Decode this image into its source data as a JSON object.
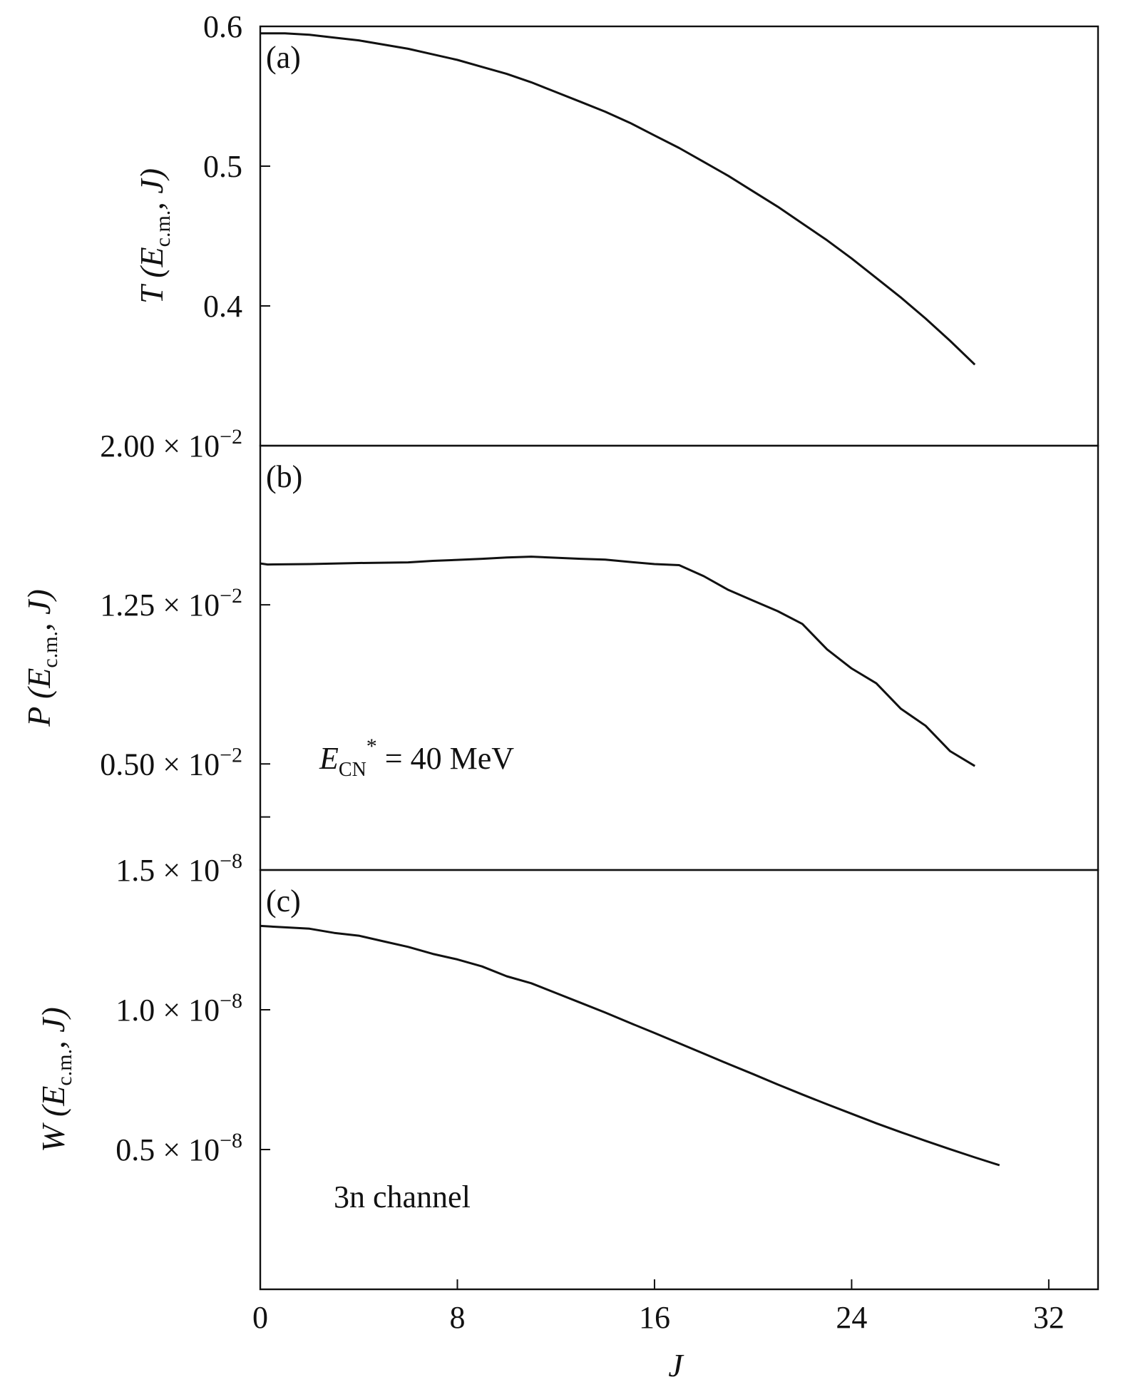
{
  "chart_data": [
    {
      "type": "line",
      "panel_tag": "(a)",
      "ylabel": {
        "main": "T (E",
        "sub": "c.m.",
        "tail": ", J)"
      },
      "ylim": [
        0.3,
        0.6
      ],
      "yticks": [
        {
          "value": 0.6,
          "label": "0.6"
        },
        {
          "value": 0.5,
          "label": "0.5"
        },
        {
          "value": 0.4,
          "label": "0.4"
        }
      ],
      "x": [
        0,
        1,
        2,
        3,
        4,
        5,
        6,
        7,
        8,
        9,
        10,
        11,
        12,
        13,
        14,
        15,
        16,
        17,
        18,
        19,
        20,
        21,
        22,
        23,
        24,
        25,
        26,
        27,
        28,
        29
      ],
      "values": [
        0.595,
        0.595,
        0.594,
        0.592,
        0.59,
        0.587,
        0.584,
        0.58,
        0.576,
        0.571,
        0.566,
        0.56,
        0.553,
        0.546,
        0.539,
        0.531,
        0.522,
        0.513,
        0.503,
        0.493,
        0.482,
        0.471,
        0.459,
        0.447,
        0.434,
        0.42,
        0.406,
        0.391,
        0.375,
        0.358
      ]
    },
    {
      "type": "line",
      "panel_tag": "(b)",
      "ylabel": {
        "main": "P (E",
        "sub": "c.m.",
        "tail": ", J)"
      },
      "ylim": [
        0.0,
        0.02
      ],
      "yticks": [
        {
          "value": 0.02,
          "label": "2.00 × 10",
          "exp": "−2"
        },
        {
          "value": 0.0125,
          "label": "1.25 × 10",
          "exp": "−2"
        },
        {
          "value": 0.005,
          "label": "0.50 × 10",
          "exp": "−2"
        }
      ],
      "extra_tick": 0.0025,
      "annotation": {
        "main": "E",
        "sub": "CN",
        "sup": "*",
        "tail": " = 40 MeV"
      },
      "x": [
        0,
        0.3,
        2,
        4,
        6,
        7,
        8,
        9,
        10,
        11,
        12,
        13,
        14,
        15,
        16,
        17,
        18,
        19,
        20,
        21,
        22,
        23,
        24,
        25,
        26,
        27,
        28,
        29
      ],
      "values": [
        0.01445,
        0.0144,
        0.01442,
        0.01447,
        0.0145,
        0.01457,
        0.01462,
        0.01467,
        0.01473,
        0.01477,
        0.01472,
        0.01467,
        0.01463,
        0.01452,
        0.01442,
        0.01437,
        0.01385,
        0.0132,
        0.0127,
        0.0122,
        0.0116,
        0.0104,
        0.0095,
        0.0088,
        0.0076,
        0.0068,
        0.0056,
        0.0049
      ]
    },
    {
      "type": "line",
      "panel_tag": "(c)",
      "ylabel": {
        "main": "W (E",
        "sub": "c.m.",
        "tail": ", J)"
      },
      "ylim": [
        0.0,
        1.5e-08
      ],
      "yticks": [
        {
          "value": 1.5e-08,
          "label": "1.5 × 10",
          "exp": "−8"
        },
        {
          "value": 1e-08,
          "label": "1.0 × 10",
          "exp": "−8"
        },
        {
          "value": 5e-09,
          "label": "0.5 × 10",
          "exp": "−8"
        }
      ],
      "annotation": {
        "main": "3n channel"
      },
      "x": [
        0,
        1,
        2,
        3,
        4,
        5,
        6,
        7,
        8,
        9,
        10,
        11,
        12,
        13,
        14,
        15,
        16,
        17,
        18,
        19,
        20,
        21,
        22,
        23,
        24,
        25,
        26,
        27,
        28,
        29,
        30
      ],
      "values": [
        1.3e-08,
        1.295e-08,
        1.29e-08,
        1.275e-08,
        1.265e-08,
        1.245e-08,
        1.225e-08,
        1.2e-08,
        1.18e-08,
        1.155e-08,
        1.12e-08,
        1.095e-08,
        1.06e-08,
        1.025e-08,
        9.9e-09,
        9.53e-09,
        9.17e-09,
        8.8e-09,
        8.43e-09,
        8.06e-09,
        7.7e-09,
        7.33e-09,
        6.97e-09,
        6.62e-09,
        6.28e-09,
        5.94e-09,
        5.62e-09,
        5.31e-09,
        5.01e-09,
        4.72e-09,
        4.44e-09
      ]
    }
  ],
  "x_axis": {
    "label": "J",
    "xlim": [
      0,
      34
    ],
    "ticks": [
      {
        "value": 0,
        "label": "0"
      },
      {
        "value": 8,
        "label": "8"
      },
      {
        "value": 16,
        "label": "16"
      },
      {
        "value": 24,
        "label": "24"
      },
      {
        "value": 32,
        "label": "32"
      }
    ]
  }
}
